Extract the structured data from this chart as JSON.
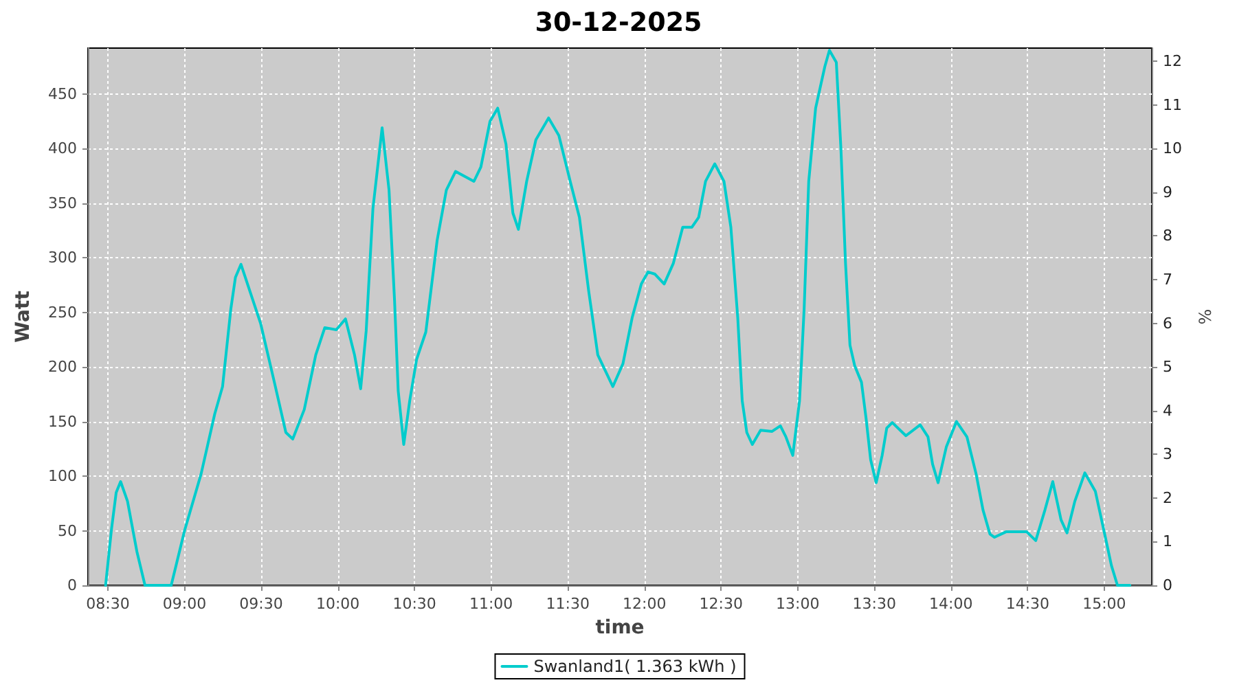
{
  "chart_data": {
    "type": "line",
    "title": "30-12-2025",
    "xlabel": "time",
    "ylabel": "Watt",
    "y2label": "%",
    "x": [
      8.485,
      8.524,
      8.554,
      8.583,
      8.628,
      8.689,
      8.742,
      8.913,
      9.0,
      9.108,
      9.197,
      9.248,
      9.302,
      9.332,
      9.368,
      9.496,
      9.586,
      9.661,
      9.706,
      9.781,
      9.856,
      9.915,
      9.99,
      10.05,
      10.109,
      10.149,
      10.185,
      10.229,
      10.289,
      10.334,
      10.37,
      10.394,
      10.43,
      10.469,
      10.514,
      10.574,
      10.648,
      10.708,
      10.768,
      10.888,
      10.933,
      10.993,
      11.043,
      11.097,
      11.142,
      11.178,
      11.232,
      11.292,
      11.375,
      11.442,
      11.516,
      11.576,
      11.636,
      11.696,
      11.794,
      11.86,
      11.92,
      11.98,
      12.024,
      12.069,
      12.129,
      12.189,
      12.25,
      12.31,
      12.354,
      12.399,
      12.459,
      12.519,
      12.564,
      12.609,
      12.638,
      12.668,
      12.704,
      12.758,
      12.833,
      12.887,
      12.923,
      12.968,
      13.012,
      13.042,
      13.072,
      13.117,
      13.177,
      13.207,
      13.252,
      13.282,
      13.312,
      13.341,
      13.372,
      13.416,
      13.446,
      13.476,
      13.512,
      13.551,
      13.581,
      13.617,
      13.706,
      13.799,
      13.85,
      13.88,
      13.916,
      13.97,
      14.036,
      14.104,
      14.164,
      14.209,
      14.254,
      14.284,
      14.359,
      14.494,
      14.553,
      14.613,
      14.664,
      14.718,
      14.757,
      14.808,
      14.873,
      14.942,
      15.001,
      15.047,
      15.086,
      15.167
    ],
    "series": [
      {
        "name": "Swanland1( 1.363 kWh )",
        "color": "#00cccc",
        "values": [
          0,
          52,
          85,
          95,
          77,
          31,
          0,
          0,
          50,
          102,
          157,
          182,
          253,
          282,
          294,
          240,
          186,
          140,
          134,
          161,
          211,
          236,
          234,
          244,
          211,
          180,
          233,
          345,
          419,
          362,
          261,
          178,
          129,
          169,
          207,
          232,
          316,
          362,
          379,
          370,
          383,
          425,
          437,
          404,
          341,
          326,
          370,
          408,
          428,
          412,
          370,
          337,
          270,
          211,
          182,
          203,
          245,
          276,
          287,
          285,
          276,
          295,
          328,
          328,
          337,
          370,
          386,
          370,
          328,
          245,
          169,
          140,
          129,
          142,
          141,
          146,
          136,
          119,
          169,
          253,
          370,
          437,
          475,
          490,
          479,
          400,
          295,
          220,
          201,
          186,
          153,
          115,
          94,
          119,
          144,
          149,
          137,
          147,
          136,
          111,
          94,
          127,
          150,
          136,
          102,
          69,
          47,
          44,
          49,
          49,
          41,
          69,
          95,
          60,
          48,
          77,
          103,
          86,
          48,
          18,
          0,
          0
        ]
      }
    ],
    "xlim": [
      8.37,
      15.31
    ],
    "xticks": [
      {
        "value": 8.5,
        "label": "08:30"
      },
      {
        "value": 9,
        "label": "09:00"
      },
      {
        "value": 9.5,
        "label": "09:30"
      },
      {
        "value": 10,
        "label": "10:00"
      },
      {
        "value": 10.5,
        "label": "10:30"
      },
      {
        "value": 11,
        "label": "11:00"
      },
      {
        "value": 11.5,
        "label": "11:30"
      },
      {
        "value": 12,
        "label": "12:00"
      },
      {
        "value": 12.5,
        "label": "12:30"
      },
      {
        "value": 13,
        "label": "13:00"
      },
      {
        "value": 13.5,
        "label": "13:30"
      },
      {
        "value": 14,
        "label": "14:00"
      },
      {
        "value": 14.5,
        "label": "14:30"
      },
      {
        "value": 15,
        "label": "15:00"
      }
    ],
    "ylim": [
      0,
      492
    ],
    "yticks": [
      0,
      50,
      100,
      150,
      200,
      250,
      300,
      350,
      400,
      450
    ],
    "y2lim": [
      0,
      12.3
    ],
    "y2ticks": [
      0,
      1,
      2,
      3,
      4,
      5,
      6,
      7,
      8,
      9,
      10,
      11,
      12
    ],
    "grid": true,
    "legend": "bottom"
  }
}
